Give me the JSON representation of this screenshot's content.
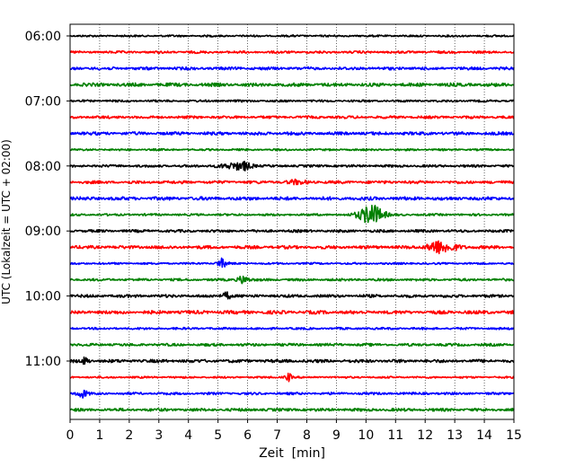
{
  "chart_data": {
    "type": "line",
    "title": "",
    "xlabel": "Zeit  [min]",
    "ylabel": "UTC (Lokalzeit = UTC + 02:00)",
    "xlim": [
      0,
      15
    ],
    "x_ticks": [
      0,
      1,
      2,
      3,
      4,
      5,
      6,
      7,
      8,
      9,
      10,
      11,
      12,
      13,
      14,
      15
    ],
    "x_gridlines": "vertical dotted at each minute",
    "y_ticks": [
      "06:00",
      "07:00",
      "08:00",
      "09:00",
      "10:00",
      "11:00"
    ],
    "trace_interval_minutes": 15,
    "trace_start": "06:00",
    "trace_end": "11:45",
    "trace_count": 24,
    "colors": [
      "#000000",
      "#ff0000",
      "#0000ff",
      "#008000"
    ],
    "events": [
      {
        "trace": 8,
        "start": 4.3,
        "end": 6.5,
        "peak": 5.9,
        "amp": 5
      },
      {
        "trace": 9,
        "start": 7.0,
        "end": 8.5,
        "peak": 7.6,
        "amp": 2
      },
      {
        "trace": 11,
        "start": 9.3,
        "end": 11.0,
        "peak": 10.2,
        "amp": 14
      },
      {
        "trace": 13,
        "start": 11.8,
        "end": 13.8,
        "peak": 12.3,
        "amp": 8
      },
      {
        "trace": 14,
        "start": 4.8,
        "end": 5.5,
        "peak": 5.1,
        "amp": 6
      },
      {
        "trace": 15,
        "start": 5.5,
        "end": 6.3,
        "peak": 5.8,
        "amp": 5
      },
      {
        "trace": 16,
        "start": 5.0,
        "end": 5.6,
        "peak": 5.3,
        "amp": 5
      },
      {
        "trace": 20,
        "start": 0.3,
        "end": 0.8,
        "peak": 0.5,
        "amp": 4
      },
      {
        "trace": 21,
        "start": 7.1,
        "end": 7.6,
        "peak": 7.4,
        "amp": 5
      },
      {
        "trace": 22,
        "start": 0.0,
        "end": 0.8,
        "peak": 0.4,
        "amp": 5
      }
    ]
  }
}
